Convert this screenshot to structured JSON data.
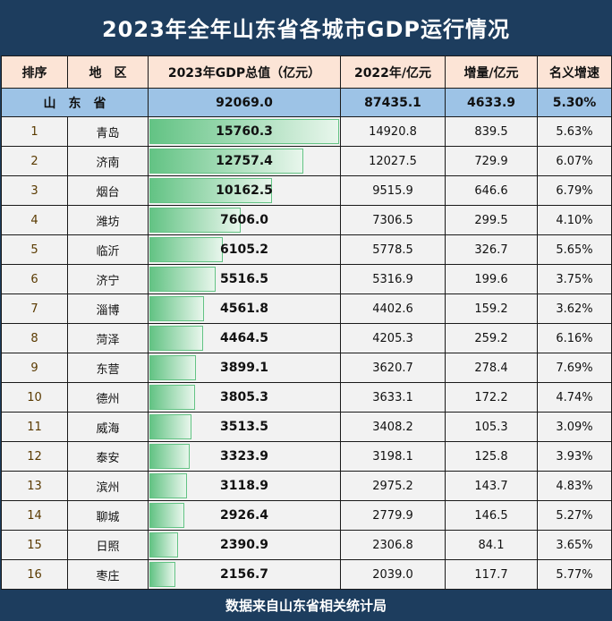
{
  "title": "2023年全年山东省各城市GDP运行情况",
  "headers": [
    "排序",
    "地　区",
    "2023年GDP总值（亿元）",
    "2022年/亿元",
    "增量/亿元",
    "名义增速"
  ],
  "province": {
    "name": "山　东　省",
    "gdp2023": "92069.0",
    "gdp2022": "87435.1",
    "increase": "4633.9",
    "growth": "5.30%"
  },
  "rows": [
    [
      "1",
      "青岛",
      "15760.3",
      "14920.8",
      "839.5",
      "5.63%"
    ],
    [
      "2",
      "济南",
      "12757.4",
      "12027.5",
      "729.9",
      "6.07%"
    ],
    [
      "3",
      "烟台",
      "10162.5",
      "9515.9",
      "646.6",
      "6.79%"
    ],
    [
      "4",
      "潍坊",
      "7606.0",
      "7306.5",
      "299.5",
      "4.10%"
    ],
    [
      "5",
      "临沂",
      "6105.2",
      "5778.5",
      "326.7",
      "5.65%"
    ],
    [
      "6",
      "济宁",
      "5516.5",
      "5316.9",
      "199.6",
      "3.75%"
    ],
    [
      "7",
      "淄博",
      "4561.8",
      "4402.6",
      "159.2",
      "3.62%"
    ],
    [
      "8",
      "菏泽",
      "4464.5",
      "4205.3",
      "259.2",
      "6.16%"
    ],
    [
      "9",
      "东营",
      "3899.1",
      "3620.7",
      "278.4",
      "7.69%"
    ],
    [
      "10",
      "德州",
      "3805.3",
      "3633.1",
      "172.2",
      "4.74%"
    ],
    [
      "11",
      "威海",
      "3513.5",
      "3408.2",
      "105.3",
      "3.09%"
    ],
    [
      "12",
      "泰安",
      "3323.9",
      "3198.1",
      "125.8",
      "3.93%"
    ],
    [
      "13",
      "滨州",
      "3118.9",
      "2975.2",
      "143.7",
      "4.83%"
    ],
    [
      "14",
      "聊城",
      "2926.4",
      "2779.9",
      "146.5",
      "5.27%"
    ],
    [
      "15",
      "日照",
      "2390.9",
      "2306.8",
      "84.1",
      "3.65%"
    ],
    [
      "16",
      "枣庄",
      "2156.7",
      "2039.0",
      "117.7",
      "5.77%"
    ]
  ],
  "footer": "数据来自山东省相关统计局",
  "colors": {
    "title_bg": "#1d3d5e",
    "header_bg": "#fce4d6",
    "province_bg": "#9dc3e6",
    "bar": "#63c384"
  }
}
